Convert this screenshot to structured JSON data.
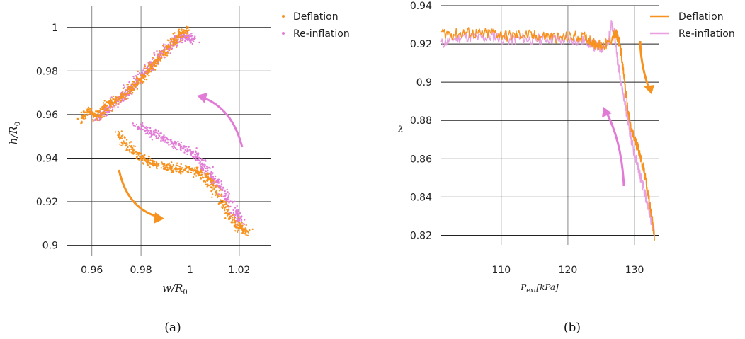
{
  "colors": {
    "deflation": "#f7921e",
    "reinflation": "#e27bd6",
    "grid": "#888888"
  },
  "chart_data": [
    {
      "type": "scatter",
      "caption": "(a)",
      "xlabel_main": "w/R",
      "xlabel_sub": "0",
      "ylabel_main": "h/R",
      "ylabel_sub": "0",
      "xlim": [
        0.95,
        1.033
      ],
      "ylim": [
        0.895,
        1.01
      ],
      "xticks": [
        0.96,
        0.98,
        1.0,
        1.02
      ],
      "xtick_labels": [
        "0.96",
        "0.98",
        "1",
        "1.02"
      ],
      "yticks": [
        0.9,
        0.92,
        0.94,
        0.96,
        0.98,
        1.0
      ],
      "ytick_labels": [
        "0.9",
        "0.92",
        "0.94",
        "0.96",
        "0.98",
        "1"
      ],
      "legend": "top-right",
      "series": [
        {
          "name": "Deflation",
          "color": "#f7921e",
          "x": [
            0.956,
            0.959,
            0.962,
            0.965,
            0.968,
            0.972,
            0.976,
            0.98,
            0.984,
            0.988,
            0.992,
            0.996,
            0.999,
            0.97,
            0.975,
            0.98,
            0.985,
            0.99,
            0.995,
            1.0,
            1.004,
            1.008,
            1.012,
            1.016,
            1.02,
            1.024
          ],
          "y": [
            0.958,
            0.962,
            0.958,
            0.963,
            0.965,
            0.968,
            0.972,
            0.976,
            0.982,
            0.987,
            0.992,
            0.997,
            0.999,
            0.952,
            0.945,
            0.94,
            0.938,
            0.936,
            0.935,
            0.935,
            0.933,
            0.93,
            0.922,
            0.914,
            0.908,
            0.906
          ]
        },
        {
          "name": "Re-inflation",
          "color": "#e27bd6",
          "x": [
            0.962,
            0.966,
            0.97,
            0.974,
            0.978,
            0.982,
            0.986,
            0.99,
            0.994,
            0.998,
            1.002,
            0.978,
            0.984,
            0.99,
            0.996,
            1.002,
            1.006,
            1.01,
            1.014,
            1.018,
            1.021
          ],
          "y": [
            0.958,
            0.962,
            0.966,
            0.97,
            0.975,
            0.98,
            0.985,
            0.99,
            0.994,
            0.996,
            0.994,
            0.955,
            0.952,
            0.948,
            0.946,
            0.942,
            0.936,
            0.93,
            0.924,
            0.915,
            0.91
          ]
        }
      ],
      "annotations": [
        "orange arrow: deflation path (downward)",
        "pink arrow: re-inflation path (upward)"
      ]
    },
    {
      "type": "line",
      "caption": "(b)",
      "xlabel_main": "P",
      "xlabel_sub": "ext",
      "xlabel_tail": "[kPa]",
      "ylabel": "λ",
      "xlim": [
        101,
        133.6
      ],
      "ylim": [
        0.815,
        0.94
      ],
      "xticks": [
        110,
        120,
        130
      ],
      "xtick_labels": [
        "110",
        "120",
        "130"
      ],
      "yticks": [
        0.82,
        0.84,
        0.86,
        0.88,
        0.9,
        0.92,
        0.94
      ],
      "ytick_labels": [
        "0.82",
        "0.84",
        "0.86",
        "0.88",
        "0.9",
        "0.92",
        "0.94"
      ],
      "legend": "top-right",
      "series": [
        {
          "name": "Deflation",
          "color": "#f7921e",
          "x": [
            101,
            103,
            105,
            107,
            109,
            111,
            113,
            115,
            117,
            119,
            121,
            123,
            124,
            125,
            126,
            127,
            127.5,
            128,
            128.5,
            129,
            129.5,
            130,
            130.5,
            131,
            131.5,
            132,
            132.5,
            133
          ],
          "y": [
            0.926,
            0.925,
            0.926,
            0.925,
            0.926,
            0.924,
            0.925,
            0.924,
            0.924,
            0.923,
            0.924,
            0.923,
            0.92,
            0.919,
            0.92,
            0.925,
            0.924,
            0.915,
            0.9,
            0.885,
            0.875,
            0.87,
            0.866,
            0.86,
            0.852,
            0.842,
            0.832,
            0.818
          ]
        },
        {
          "name": "Re-inflation",
          "color": "#e8a0e0",
          "x": [
            101,
            103,
            105,
            107,
            109,
            111,
            113,
            115,
            117,
            119,
            121,
            123,
            124,
            125,
            126,
            126.5,
            127,
            127.5,
            128,
            128.5,
            129,
            129.5,
            130,
            130.5,
            131,
            131.5,
            132,
            132.5,
            133
          ],
          "y": [
            0.92,
            0.923,
            0.924,
            0.923,
            0.924,
            0.922,
            0.923,
            0.922,
            0.923,
            0.922,
            0.922,
            0.921,
            0.919,
            0.918,
            0.92,
            0.93,
            0.925,
            0.91,
            0.9,
            0.89,
            0.88,
            0.87,
            0.862,
            0.856,
            0.849,
            0.842,
            0.836,
            0.828,
            0.82
          ]
        }
      ],
      "annotations": [
        "orange arrow: deflation direction (downward)",
        "pink arrow: re-inflation direction (upward)"
      ]
    }
  ]
}
